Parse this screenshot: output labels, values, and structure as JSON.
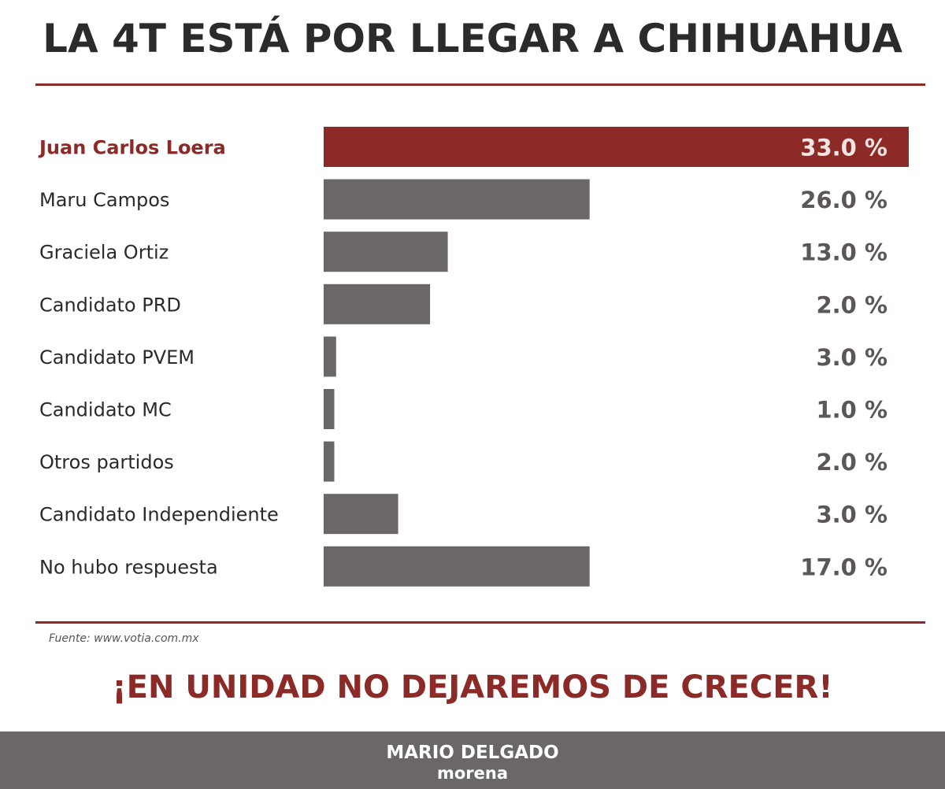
{
  "colors": {
    "accent": "#8b2a27",
    "bar": "#6b6768",
    "title": "#2b2b2b",
    "footer_bg": "#6b6768"
  },
  "header": {
    "title": "LA 4T ESTÁ POR LLEGAR A CHIHUAHUA"
  },
  "chart_data": {
    "type": "bar",
    "orientation": "horizontal",
    "highlight_index": 0,
    "value_suffix": " %",
    "categories": [
      "Juan Carlos Loera",
      "Maru Campos",
      "Graciela Ortiz",
      "Candidato PRD",
      "Candidato PVEM",
      "Candidato MC",
      "Otros partidos",
      "Candidato Independiente",
      "No hubo respuesta"
    ],
    "values": [
      33.0,
      26.0,
      13.0,
      2.0,
      3.0,
      1.0,
      2.0,
      3.0,
      17.0
    ],
    "value_labels": [
      "33.0 %",
      "26.0 %",
      "13.0 %",
      "2.0 %",
      "3.0 %",
      "1.0 %",
      "2.0 %",
      "3.0 %",
      "17.0 %"
    ],
    "drawn_bar_values": [
      33.0,
      15.0,
      7.0,
      6.0,
      0.7,
      0.6,
      0.6,
      4.2,
      15.0
    ],
    "xlim": [
      0,
      33
    ],
    "grid": false,
    "legend": false
  },
  "source": {
    "text": "Fuente: www.votia.com.mx"
  },
  "slogan": {
    "text": "¡EN UNIDAD NO DEJAREMOS DE CRECER!"
  },
  "footer": {
    "name": "MARIO DELGADO",
    "party": "morena"
  }
}
